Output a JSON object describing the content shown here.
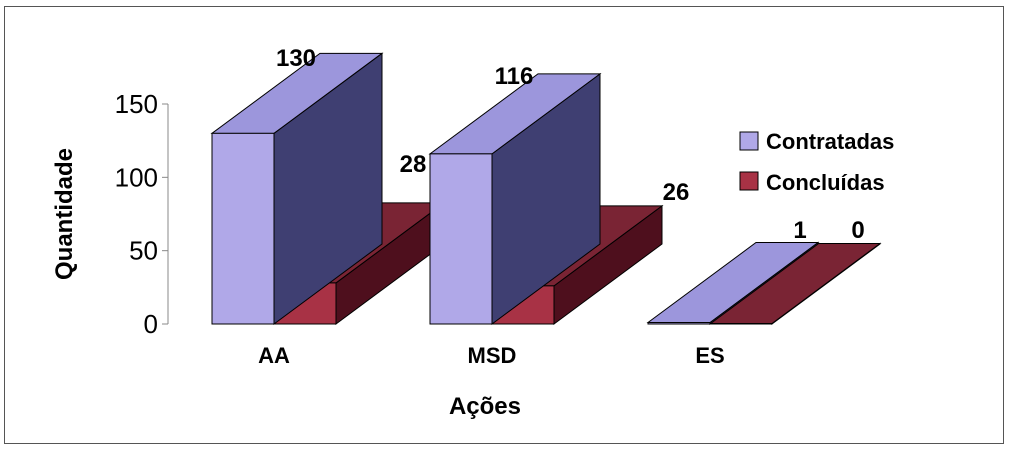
{
  "chart_data": {
    "type": "bar",
    "categories": [
      "AA",
      "MSD",
      "ES"
    ],
    "series": [
      {
        "name": "Contratadas",
        "values": [
          130,
          116,
          1
        ],
        "colors": {
          "front": "#b0a8e8",
          "side": "#3f3f72",
          "top": "#9c96dc"
        }
      },
      {
        "name": "Concluídas",
        "values": [
          28,
          26,
          0
        ],
        "colors": {
          "front": "#a83245",
          "side": "#4e0f1d",
          "top": "#7a2434"
        }
      }
    ],
    "xlabel": "Ações",
    "ylabel": "Quantidade",
    "ylim": [
      0,
      150
    ],
    "yticks": [
      0,
      50,
      100,
      150
    ],
    "legend_position": "right",
    "three_d": true
  }
}
